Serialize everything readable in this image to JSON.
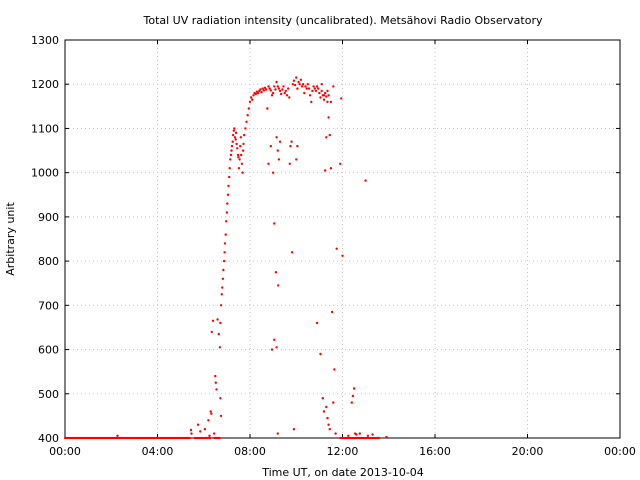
{
  "chart_data": {
    "type": "scatter",
    "title": "Total UV radiation intensity (uncalibrated). Metsähovi Radio Observatory",
    "xlabel": "Time UT, on date 2013-10-04",
    "ylabel": "Arbitrary unit",
    "xlim": [
      0,
      24
    ],
    "ylim": [
      400,
      1300
    ],
    "x_unit": "hours UT",
    "xticks": [
      0,
      4,
      8,
      12,
      16,
      20,
      24
    ],
    "xtick_labels": [
      "00:00",
      "04:00",
      "08:00",
      "12:00",
      "16:00",
      "20:00",
      "00:00"
    ],
    "yticks": [
      400,
      500,
      600,
      700,
      800,
      900,
      1000,
      1100,
      1200,
      1300
    ],
    "ytick_labels": [
      "400",
      "500",
      "600",
      "700",
      "800",
      "900",
      "1000",
      "1100",
      "1200",
      "1300"
    ],
    "grid": true,
    "color": "#ff0000",
    "series": [
      {
        "points": [
          [
            2.27,
            405
          ],
          [
            5.45,
            418
          ],
          [
            5.47,
            410
          ],
          [
            5.75,
            430
          ],
          [
            5.85,
            415
          ],
          [
            6.05,
            420
          ],
          [
            6.2,
            440
          ],
          [
            6.25,
            405
          ],
          [
            6.3,
            460
          ],
          [
            6.33,
            455
          ],
          [
            6.35,
            640
          ],
          [
            6.4,
            665
          ],
          [
            6.45,
            410
          ],
          [
            6.5,
            540
          ],
          [
            6.52,
            525
          ],
          [
            6.55,
            510
          ],
          [
            6.6,
            668
          ],
          [
            6.65,
            635
          ],
          [
            6.7,
            605
          ],
          [
            6.72,
            490
          ],
          [
            6.75,
            450
          ],
          [
            6.72,
            660
          ],
          [
            6.75,
            700
          ],
          [
            6.78,
            725
          ],
          [
            6.8,
            740
          ],
          [
            6.83,
            760
          ],
          [
            6.85,
            780
          ],
          [
            6.88,
            800
          ],
          [
            6.9,
            820
          ],
          [
            6.92,
            840
          ],
          [
            6.95,
            860
          ],
          [
            6.97,
            890
          ],
          [
            7.0,
            910
          ],
          [
            7.02,
            930
          ],
          [
            7.05,
            950
          ],
          [
            7.07,
            970
          ],
          [
            7.1,
            990
          ],
          [
            7.12,
            1010
          ],
          [
            7.15,
            1030
          ],
          [
            7.18,
            1040
          ],
          [
            7.2,
            1050
          ],
          [
            7.22,
            1060
          ],
          [
            7.25,
            1070
          ],
          [
            7.27,
            1085
          ],
          [
            7.3,
            1095
          ],
          [
            7.32,
            1100
          ],
          [
            7.35,
            1080
          ],
          [
            7.38,
            1075
          ],
          [
            7.4,
            1090
          ],
          [
            7.42,
            1065
          ],
          [
            7.45,
            1055
          ],
          [
            7.48,
            1040
          ],
          [
            7.5,
            1035
          ],
          [
            7.52,
            1010
          ],
          [
            7.55,
            1030
          ],
          [
            7.58,
            1060
          ],
          [
            7.6,
            1080
          ],
          [
            7.62,
            1040
          ],
          [
            7.65,
            1020
          ],
          [
            7.68,
            1000
          ],
          [
            7.7,
            1050
          ],
          [
            7.72,
            1065
          ],
          [
            7.75,
            1085
          ],
          [
            7.8,
            1100
          ],
          [
            7.85,
            1115
          ],
          [
            7.9,
            1130
          ],
          [
            7.95,
            1145
          ],
          [
            8.0,
            1160
          ],
          [
            8.05,
            1170
          ],
          [
            8.1,
            1165
          ],
          [
            8.15,
            1175
          ],
          [
            8.2,
            1180
          ],
          [
            8.25,
            1178
          ],
          [
            8.3,
            1183
          ],
          [
            8.35,
            1180
          ],
          [
            8.4,
            1185
          ],
          [
            8.45,
            1188
          ],
          [
            8.5,
            1182
          ],
          [
            8.55,
            1190
          ],
          [
            8.6,
            1186
          ],
          [
            8.65,
            1192
          ],
          [
            8.7,
            1188
          ],
          [
            8.75,
            1145
          ],
          [
            8.8,
            1195
          ],
          [
            8.85,
            1190
          ],
          [
            8.9,
            1186
          ],
          [
            8.95,
            1175
          ],
          [
            8.8,
            1020
          ],
          [
            8.9,
            1060
          ],
          [
            9.0,
            1000
          ],
          [
            9.05,
            885
          ],
          [
            9.0,
            1180
          ],
          [
            9.05,
            1195
          ],
          [
            9.1,
            1188
          ],
          [
            9.15,
            1205
          ],
          [
            9.2,
            1195
          ],
          [
            9.25,
            1190
          ],
          [
            9.3,
            1185
          ],
          [
            9.35,
            1178
          ],
          [
            9.15,
            1080
          ],
          [
            9.2,
            1050
          ],
          [
            9.25,
            1030
          ],
          [
            9.3,
            1070
          ],
          [
            9.12,
            775
          ],
          [
            9.22,
            745
          ],
          [
            8.95,
            600
          ],
          [
            9.05,
            622
          ],
          [
            9.15,
            605
          ],
          [
            9.2,
            410
          ],
          [
            9.4,
            1188
          ],
          [
            9.45,
            1195
          ],
          [
            9.5,
            1180
          ],
          [
            9.55,
            1185
          ],
          [
            9.6,
            1175
          ],
          [
            9.65,
            1190
          ],
          [
            9.7,
            1170
          ],
          [
            9.72,
            1020
          ],
          [
            9.75,
            1060
          ],
          [
            9.8,
            1070
          ],
          [
            9.82,
            820
          ],
          [
            9.85,
            1200
          ],
          [
            9.9,
            1208
          ],
          [
            9.95,
            1198
          ],
          [
            10.0,
            1215
          ],
          [
            10.05,
            1190
          ],
          [
            10.1,
            1205
          ],
          [
            10.15,
            1200
          ],
          [
            10.2,
            1210
          ],
          [
            10.25,
            1195
          ],
          [
            10.3,
            1200
          ],
          [
            10.35,
            1180
          ],
          [
            10.4,
            1195
          ],
          [
            10.45,
            1190
          ],
          [
            10.5,
            1200
          ],
          [
            10.55,
            1190
          ],
          [
            10.6,
            1175
          ],
          [
            10.65,
            1160
          ],
          [
            10.7,
            1185
          ],
          [
            10.75,
            1195
          ],
          [
            10.8,
            1190
          ],
          [
            10.85,
            1185
          ],
          [
            10.9,
            1195
          ],
          [
            10.95,
            1190
          ],
          [
            11.0,
            1180
          ],
          [
            11.05,
            1170
          ],
          [
            11.1,
            1185
          ],
          [
            11.15,
            1175
          ],
          [
            11.2,
            1165
          ],
          [
            11.25,
            1180
          ],
          [
            11.3,
            1172
          ],
          [
            11.35,
            1160
          ],
          [
            11.4,
            1175
          ],
          [
            10.0,
            1030
          ],
          [
            10.05,
            1060
          ],
          [
            9.9,
            420
          ],
          [
            10.9,
            660
          ],
          [
            11.05,
            590
          ],
          [
            11.15,
            490
          ],
          [
            11.2,
            460
          ],
          [
            11.3,
            470
          ],
          [
            11.35,
            445
          ],
          [
            11.4,
            430
          ],
          [
            11.45,
            420
          ],
          [
            11.25,
            1005
          ],
          [
            11.3,
            1080
          ],
          [
            11.4,
            1125
          ],
          [
            11.5,
            1160
          ],
          [
            11.45,
            1085
          ],
          [
            11.5,
            1010
          ],
          [
            11.55,
            685
          ],
          [
            11.6,
            480
          ],
          [
            11.65,
            555
          ],
          [
            11.7,
            410
          ],
          [
            11.75,
            828
          ],
          [
            11.9,
            1020
          ],
          [
            12.0,
            812
          ],
          [
            11.95,
            1168
          ],
          [
            12.25,
            405
          ],
          [
            12.4,
            480
          ],
          [
            12.45,
            495
          ],
          [
            12.5,
            512
          ],
          [
            12.55,
            410
          ],
          [
            12.6,
            408
          ],
          [
            12.75,
            410
          ],
          [
            13.0,
            982
          ],
          [
            13.1,
            405
          ],
          [
            13.3,
            408
          ],
          [
            13.9,
            402
          ],
          [
            11.2,
            1175
          ],
          [
            11.35,
            1185
          ],
          [
            11.6,
            1195
          ],
          [
            11.1,
            1200
          ]
        ]
      }
    ]
  }
}
